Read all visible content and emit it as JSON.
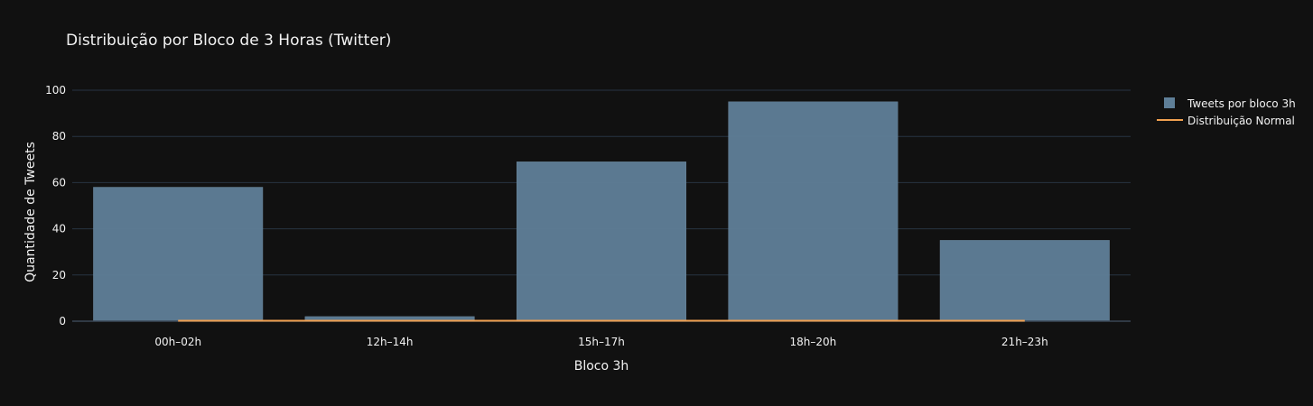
{
  "chart_data": {
    "type": "bar",
    "title": "Distribuição por Bloco de 3 Horas (Twitter)",
    "xlabel": "Bloco 3h",
    "ylabel": "Quantidade de Tweets",
    "categories": [
      "00h–02h",
      "12h–14h",
      "15h–17h",
      "18h–20h",
      "21h–23h"
    ],
    "series": [
      {
        "name": "Tweets por bloco 3h",
        "type": "bar",
        "values": [
          58,
          2,
          69,
          95,
          35
        ],
        "color": "#5f7f98"
      },
      {
        "name": "Distribuição Normal",
        "type": "line",
        "values": [
          0.0,
          0.0,
          0.0,
          0.0,
          0.0
        ],
        "color": "#f0a050"
      }
    ],
    "ylim": [
      0,
      100
    ],
    "yticks": [
      0,
      20,
      40,
      60,
      80,
      100
    ],
    "grid": true,
    "legend_position": "top-right"
  },
  "colors": {
    "background": "#111111",
    "grid": "#283442",
    "text": "#f2f2f2"
  }
}
